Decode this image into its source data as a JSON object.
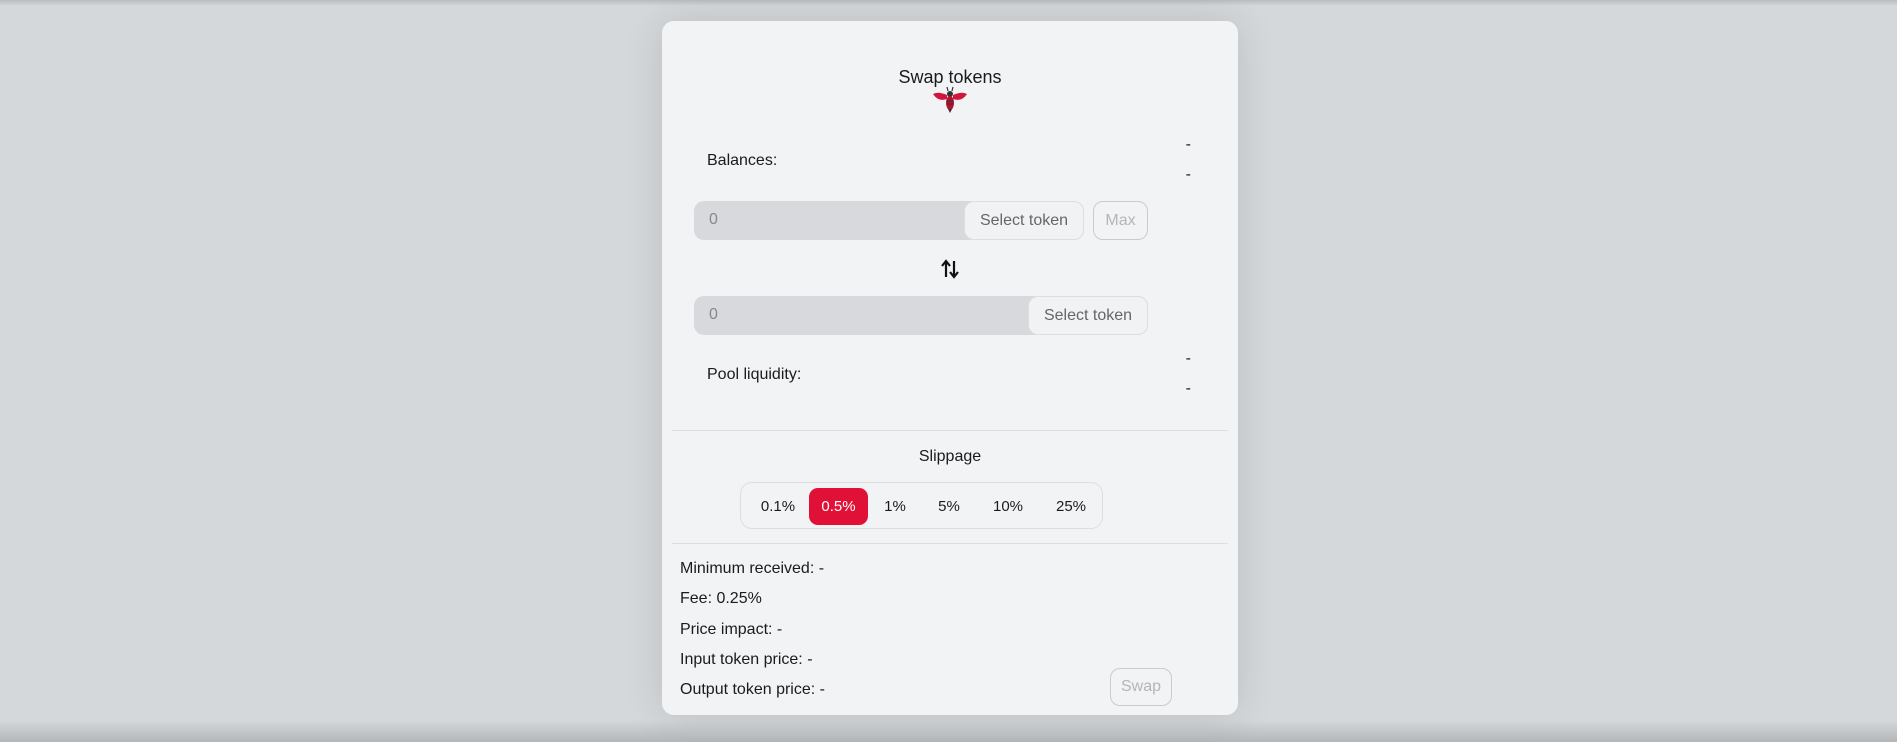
{
  "title": "Swap tokens",
  "balances": {
    "label": "Balances:",
    "values": [
      "-",
      "-"
    ]
  },
  "input": {
    "value": "0",
    "select_label": "Select token",
    "max_label": "Max"
  },
  "output": {
    "value": "0",
    "select_label": "Select token"
  },
  "pool": {
    "label": "Pool liquidity:",
    "values": [
      "-",
      "-"
    ]
  },
  "slippage": {
    "label": "Slippage",
    "options": [
      "0.1%",
      "0.5%",
      "1%",
      "5%",
      "10%",
      "25%"
    ],
    "selected": "0.5%"
  },
  "info": [
    "Minimum received: -",
    "Fee: 0.25%",
    "Price impact: -",
    "Input token price: -",
    "Output token price: -"
  ],
  "swap_label": "Swap",
  "colors": {
    "accent": "#e11036"
  }
}
